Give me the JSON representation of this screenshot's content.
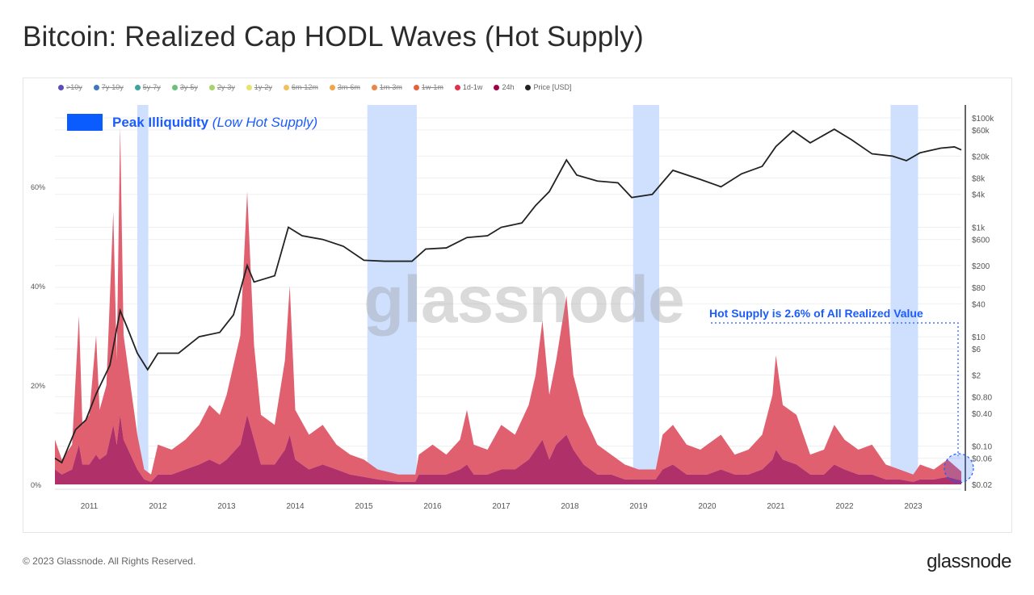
{
  "title": "Bitcoin: Realized Cap HODL Waves (Hot Supply)",
  "footer": "© 2023 Glassnode. All Rights Reserved.",
  "logo": "glassnode",
  "watermark": "glassnode",
  "legend": [
    {
      "label": ">10y",
      "color": "#5b4fb5",
      "enabled": false
    },
    {
      "label": "7y-10y",
      "color": "#3e78b8",
      "enabled": false
    },
    {
      "label": "5y-7y",
      "color": "#3aa59a",
      "enabled": false
    },
    {
      "label": "3y-5y",
      "color": "#6cbf7a",
      "enabled": false
    },
    {
      "label": "2y-3y",
      "color": "#a6d46a",
      "enabled": false
    },
    {
      "label": "1y-2y",
      "color": "#e8e36a",
      "enabled": false
    },
    {
      "label": "6m-12m",
      "color": "#f0c05a",
      "enabled": false
    },
    {
      "label": "3m-6m",
      "color": "#f0a54a",
      "enabled": false
    },
    {
      "label": "1m-3m",
      "color": "#eb8644",
      "enabled": false
    },
    {
      "label": "1w-1m",
      "color": "#e5603f",
      "enabled": false
    },
    {
      "label": "1d-1w",
      "color": "#e0304a",
      "enabled": true
    },
    {
      "label": "24h",
      "color": "#a0004a",
      "enabled": true
    },
    {
      "label": "Price [USD]",
      "color": "#222222",
      "enabled": true
    }
  ],
  "annotations": {
    "peak_label_bold": "Peak Illiquidity",
    "peak_label_italic": "(Low Hot Supply)",
    "peak_color": "#0b5cff",
    "hot_supply_note": "Hot Supply is 2.6% of All Realized Value"
  },
  "chart_data": {
    "type": "area",
    "title": "Bitcoin: Realized Cap HODL Waves (Hot Supply)",
    "xlim": [
      2010.5,
      2023.7
    ],
    "x_ticks": [
      "2011",
      "2012",
      "2013",
      "2014",
      "2015",
      "2016",
      "2017",
      "2018",
      "2019",
      "2020",
      "2021",
      "2022",
      "2023"
    ],
    "ylim_left": [
      0,
      75
    ],
    "y_ticks_left": [
      "0%",
      "20%",
      "40%",
      "60%"
    ],
    "y_ticks_left_values": [
      0,
      20,
      40,
      60
    ],
    "y_right_scale": "log",
    "ylim_right": [
      0.02,
      100000
    ],
    "y_ticks_right": [
      "$0.02",
      "$0.06",
      "$0.10",
      "$0.40",
      "$0.80",
      "$2",
      "$6",
      "$10",
      "$40",
      "$80",
      "$200",
      "$600",
      "$1k",
      "$4k",
      "$8k",
      "$20k",
      "$60k",
      "$100k"
    ],
    "y_ticks_right_values": [
      0.02,
      0.06,
      0.1,
      0.4,
      0.8,
      2,
      6,
      10,
      40,
      80,
      200,
      600,
      1000,
      4000,
      8000,
      20000,
      60000,
      100000
    ],
    "grid": true,
    "legend_position": "top-left",
    "highlight_ranges": [
      [
        2011.7,
        2011.86
      ],
      [
        2015.05,
        2015.77
      ],
      [
        2018.92,
        2019.3
      ],
      [
        2022.67,
        2023.07
      ]
    ],
    "highlight_color": "#cfe0ff",
    "x": [
      2010.5,
      2010.6,
      2010.75,
      2010.85,
      2010.9,
      2011.0,
      2011.1,
      2011.15,
      2011.25,
      2011.35,
      2011.4,
      2011.45,
      2011.5,
      2011.6,
      2011.7,
      2011.8,
      2011.9,
      2012.0,
      2012.2,
      2012.4,
      2012.6,
      2012.75,
      2012.9,
      2013.0,
      2013.2,
      2013.3,
      2013.4,
      2013.5,
      2013.7,
      2013.85,
      2013.92,
      2014.0,
      2014.2,
      2014.4,
      2014.6,
      2014.8,
      2015.0,
      2015.2,
      2015.5,
      2015.75,
      2015.8,
      2016.0,
      2016.2,
      2016.4,
      2016.5,
      2016.6,
      2016.8,
      2017.0,
      2017.2,
      2017.4,
      2017.5,
      2017.6,
      2017.7,
      2017.8,
      2017.95,
      2018.05,
      2018.2,
      2018.4,
      2018.6,
      2018.8,
      2019.0,
      2019.25,
      2019.35,
      2019.5,
      2019.7,
      2019.9,
      2020.0,
      2020.2,
      2020.4,
      2020.6,
      2020.8,
      2020.95,
      2021.0,
      2021.1,
      2021.3,
      2021.5,
      2021.7,
      2021.85,
      2022.0,
      2022.2,
      2022.4,
      2022.6,
      2022.8,
      2023.0,
      2023.1,
      2023.3,
      2023.5,
      2023.7
    ],
    "series": [
      {
        "name": "1d-1w",
        "color": "#e06070",
        "values": [
          6,
          3,
          5,
          26,
          8,
          10,
          24,
          10,
          14,
          43,
          17,
          58,
          21,
          14,
          7,
          2,
          1.5,
          6,
          5,
          6,
          8,
          11,
          10,
          13,
          22,
          45,
          19,
          10,
          8,
          18,
          30,
          10,
          7,
          8,
          5,
          4,
          3.5,
          2,
          1.5,
          1.5,
          4,
          6,
          4,
          6,
          11,
          6,
          5,
          9,
          7,
          11,
          15,
          24,
          13,
          17,
          28,
          15,
          10,
          6,
          4,
          3,
          2,
          2,
          7,
          8,
          6,
          5,
          6,
          7,
          4,
          5,
          7,
          13,
          19,
          11,
          10,
          4,
          5,
          8,
          6,
          5,
          6,
          3,
          2,
          1.5,
          3,
          2,
          3.5,
          1.8
        ]
      },
      {
        "name": "24h",
        "color": "#b0306a",
        "values": [
          3,
          2,
          3,
          8,
          4,
          4,
          6,
          5,
          6,
          12,
          8,
          14,
          9,
          6,
          3,
          1,
          0.5,
          2,
          2,
          3,
          4,
          5,
          4,
          5,
          8,
          14,
          9,
          4,
          4,
          7,
          10,
          5,
          3,
          4,
          3,
          2,
          1.5,
          1,
          0.5,
          0.5,
          2,
          2,
          2,
          3,
          4,
          2,
          2,
          3,
          3,
          5,
          7,
          9,
          5,
          8,
          10,
          7,
          4,
          2,
          2,
          1,
          1,
          1,
          3,
          4,
          2,
          2,
          2,
          3,
          2,
          2,
          3,
          5,
          7,
          5,
          4,
          2,
          2,
          4,
          3,
          2,
          2,
          1,
          1,
          0.5,
          1,
          1,
          1.5,
          0.8
        ]
      }
    ],
    "price": {
      "name": "Price [USD]",
      "color": "#222222",
      "x": [
        2010.5,
        2010.6,
        2010.8,
        2010.95,
        2011.1,
        2011.3,
        2011.45,
        2011.55,
        2011.7,
        2011.85,
        2012.0,
        2012.3,
        2012.6,
        2012.9,
        2013.1,
        2013.3,
        2013.4,
        2013.7,
        2013.9,
        2014.1,
        2014.4,
        2014.7,
        2015.0,
        2015.3,
        2015.7,
        2015.9,
        2016.2,
        2016.5,
        2016.8,
        2017.0,
        2017.3,
        2017.5,
        2017.7,
        2017.95,
        2018.1,
        2018.4,
        2018.7,
        2018.9,
        2019.2,
        2019.5,
        2019.9,
        2020.2,
        2020.5,
        2020.8,
        2021.0,
        2021.25,
        2021.5,
        2021.85,
        2022.1,
        2022.4,
        2022.7,
        2022.9,
        2023.1,
        2023.4,
        2023.6,
        2023.7
      ],
      "values": [
        0.06,
        0.05,
        0.2,
        0.3,
        0.9,
        3,
        30,
        15,
        5,
        2.5,
        5,
        5,
        10,
        12,
        25,
        200,
        100,
        130,
        1000,
        700,
        600,
        450,
        250,
        240,
        240,
        400,
        420,
        650,
        700,
        1000,
        1200,
        2500,
        4500,
        17000,
        9000,
        7000,
        6500,
        3500,
        4000,
        11000,
        7500,
        5500,
        9500,
        13000,
        30000,
        58000,
        35000,
        62000,
        40000,
        22000,
        20000,
        16500,
        23000,
        28000,
        29500,
        26000
      ]
    }
  }
}
